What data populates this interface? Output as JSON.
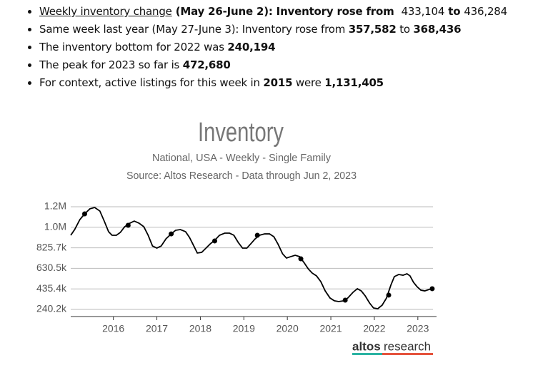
{
  "bullets": [
    [
      "Weekly inventory change",
      " (May 26-June 2): Inventory rose from  ",
      "433,104",
      " to ",
      "436,284"
    ],
    [
      "Same week last year (May 27-June 3): Inventory rose from ",
      "357,582",
      " to ",
      "368,436"
    ],
    [
      "The inventory bottom for 2022 was ",
      "240,194"
    ],
    [
      "The peak for 2023 so far is ",
      "472,680"
    ],
    [
      "For context, active listings for this week in ",
      "2015",
      " were ",
      "1,131,405"
    ]
  ],
  "logo": [
    "altos",
    "research"
  ],
  "chart_data": {
    "type": "line",
    "title": "Inventory",
    "subtitle": "National, USA - Weekly - Single Family",
    "source": "Source: Altos Research - Data through Jun 2, 2023",
    "xlim": [
      2015.02,
      2023.43
    ],
    "ylim": [
      172400,
      1283700
    ],
    "xticks": [
      2016,
      2017,
      2018,
      2019,
      2020,
      2021,
      2022,
      2023
    ],
    "yticks": [
      {
        "value": 240200,
        "label": "240.2k"
      },
      {
        "value": 435400,
        "label": "435.4k"
      },
      {
        "value": 630500,
        "label": "630.5k"
      },
      {
        "value": 825700,
        "label": "825.7k"
      },
      {
        "value": 1020800,
        "label": "1.0M"
      },
      {
        "value": 1216000,
        "label": "1.2M"
      }
    ],
    "grid": true,
    "series": [
      {
        "color": "#000000",
        "x": [
          2015.02,
          2015.11,
          2015.23,
          2015.34,
          2015.46,
          2015.57,
          2015.69,
          2015.79,
          2015.89,
          2015.97,
          2016.07,
          2016.16,
          2016.26,
          2016.38,
          2016.48,
          2016.59,
          2016.7,
          2016.8,
          2016.9,
          2017.0,
          2017.1,
          2017.21,
          2017.33,
          2017.43,
          2017.54,
          2017.66,
          2017.75,
          2017.85,
          2017.93,
          2018.03,
          2018.13,
          2018.23,
          2018.33,
          2018.44,
          2018.56,
          2018.67,
          2018.77,
          2018.87,
          2018.97,
          2019.07,
          2019.16,
          2019.26,
          2019.36,
          2019.48,
          2019.59,
          2019.69,
          2019.79,
          2019.89,
          2019.98,
          2020.08,
          2020.18,
          2020.28,
          2020.38,
          2020.48,
          2020.57,
          2020.67,
          2020.77,
          2020.87,
          2020.98,
          2021.08,
          2021.18,
          2021.3,
          2021.39,
          2021.51,
          2021.61,
          2021.7,
          2021.79,
          2021.89,
          2021.98,
          2022.08,
          2022.18,
          2022.28,
          2022.38,
          2022.46,
          2022.56,
          2022.66,
          2022.75,
          2022.82,
          2022.9,
          2022.98,
          2023.07,
          2023.16,
          2023.26,
          2023.33
        ],
        "values": [
          945000,
          999000,
          1094000,
          1148000,
          1196000,
          1209000,
          1175000,
          1080000,
          979000,
          945000,
          945000,
          972000,
          1026000,
          1060000,
          1080000,
          1060000,
          1026000,
          945000,
          843000,
          823000,
          843000,
          911000,
          958000,
          992000,
          999000,
          979000,
          925000,
          843000,
          776000,
          782000,
          823000,
          864000,
          897000,
          945000,
          965000,
          965000,
          945000,
          877000,
          823000,
          823000,
          864000,
          911000,
          945000,
          958000,
          958000,
          931000,
          857000,
          769000,
          728000,
          742000,
          755000,
          742000,
          687000,
          626000,
          586000,
          559000,
          504000,
          416000,
          349000,
          322000,
          315000,
          322000,
          349000,
          403000,
          437000,
          416000,
          369000,
          301000,
          254000,
          247000,
          281000,
          349000,
          471000,
          552000,
          572000,
          565000,
          579000,
          559000,
          498000,
          457000,
          423000,
          416000,
          430000,
          437000
        ]
      }
    ],
    "markers": {
      "color": "#000000",
      "x": [
        2015.34,
        2016.34,
        2017.33,
        2018.33,
        2019.31,
        2020.31,
        2021.33,
        2022.33,
        2023.33
      ],
      "values": [
        1148000,
        1040000,
        958000,
        891000,
        945000,
        721000,
        328000,
        376000,
        437000
      ]
    }
  }
}
